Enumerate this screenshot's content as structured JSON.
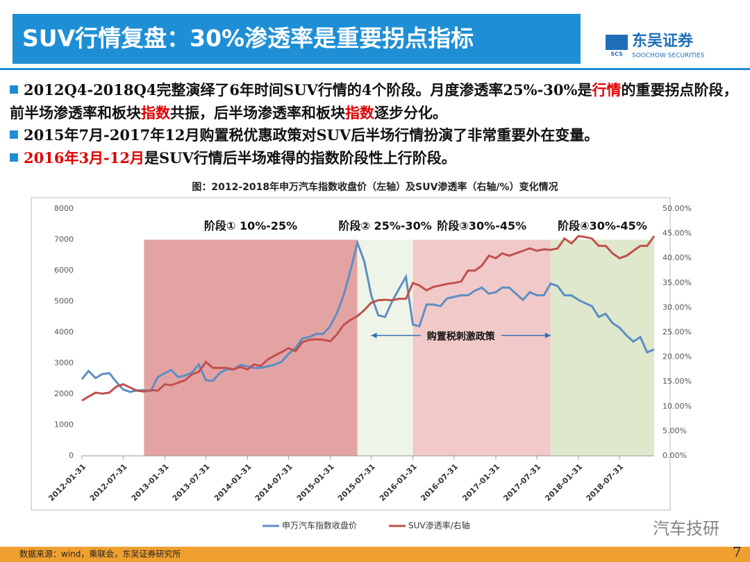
{
  "header": {
    "title": "SUV行情复盘：30%渗透率是重要拐点指标",
    "logo_mark": "SCS",
    "logo_name": "东吴证券",
    "logo_en": "SOOCHOW SECURITIES"
  },
  "bullets": [
    {
      "segments": [
        {
          "text": "2012Q4-2018Q4完整演绎了6年时间SUV行情的4个阶段。月度渗透率25%-30%是"
        },
        {
          "text": "行情",
          "red": true
        },
        {
          "text": "的重要拐点阶段，前半场渗透率和板块"
        },
        {
          "text": "指数",
          "red": true
        },
        {
          "text": "共振，后半场渗透率和板块"
        },
        {
          "text": "指数",
          "red": true
        },
        {
          "text": "逐步分化。"
        }
      ]
    },
    {
      "segments": [
        {
          "text": "2015年7月-2017年12月购置税优惠政策对SUV后半场行情扮演了非常重要外在变量。"
        }
      ]
    },
    {
      "segments": [
        {
          "text": "2016年3月-12月",
          "red": true
        },
        {
          "text": "是SUV行情后半场难得的指数阶段性上行阶段。"
        }
      ]
    }
  ],
  "chart_data": {
    "type": "line",
    "title": "图：2012-2018年申万汽车指数收盘价（左轴）及SUV渗透率（右轴/%）变化情况",
    "x": [
      "2012-01-31",
      "2012-02-29",
      "2012-03-31",
      "2012-04-30",
      "2012-05-31",
      "2012-06-30",
      "2012-07-31",
      "2012-08-31",
      "2012-09-30",
      "2012-10-31",
      "2012-11-30",
      "2012-12-31",
      "2013-01-31",
      "2013-02-28",
      "2013-03-31",
      "2013-04-30",
      "2013-05-31",
      "2013-06-30",
      "2013-07-31",
      "2013-08-31",
      "2013-09-30",
      "2013-10-31",
      "2013-11-30",
      "2013-12-31",
      "2014-01-31",
      "2014-02-28",
      "2014-03-31",
      "2014-04-30",
      "2014-05-31",
      "2014-06-30",
      "2014-07-31",
      "2014-08-31",
      "2014-09-30",
      "2014-10-31",
      "2014-11-30",
      "2014-12-31",
      "2015-01-31",
      "2015-02-28",
      "2015-03-31",
      "2015-04-30",
      "2015-05-31",
      "2015-06-30",
      "2015-07-31",
      "2015-08-31",
      "2015-09-30",
      "2015-10-31",
      "2015-11-30",
      "2015-12-31",
      "2016-01-31",
      "2016-02-29",
      "2016-03-31",
      "2016-04-30",
      "2016-05-31",
      "2016-06-30",
      "2016-07-31",
      "2016-08-31",
      "2016-09-30",
      "2016-10-31",
      "2016-11-30",
      "2016-12-31",
      "2017-01-31",
      "2017-02-28",
      "2017-03-31",
      "2017-04-30",
      "2017-05-31",
      "2017-06-30",
      "2017-07-31",
      "2017-08-31",
      "2017-09-30",
      "2017-10-31",
      "2017-11-30",
      "2017-12-31",
      "2018-01-31",
      "2018-02-28",
      "2018-03-31",
      "2018-04-30",
      "2018-05-31",
      "2018-06-30",
      "2018-07-31",
      "2018-08-31",
      "2018-09-30",
      "2018-10-31",
      "2018-11-30",
      "2018-12-31"
    ],
    "series": [
      {
        "name": "申万汽车指数收盘价",
        "color": "#5b8ec4",
        "axis": "y",
        "values": [
          2480,
          2750,
          2520,
          2650,
          2680,
          2400,
          2150,
          2070,
          2120,
          2130,
          2100,
          2550,
          2680,
          2780,
          2550,
          2600,
          2700,
          2960,
          2450,
          2430,
          2680,
          2800,
          2800,
          2950,
          2900,
          2850,
          2850,
          2900,
          2950,
          3050,
          3300,
          3500,
          3800,
          3850,
          3950,
          3950,
          4200,
          4600,
          5200,
          6000,
          6900,
          6300,
          5200,
          4550,
          4500,
          5000,
          5400,
          5800,
          4250,
          4200,
          4900,
          4900,
          4850,
          5100,
          5150,
          5200,
          5200,
          5350,
          5450,
          5250,
          5300,
          5450,
          5450,
          5250,
          5050,
          5300,
          5200,
          5200,
          5580,
          5500,
          5200,
          5200,
          5050,
          4950,
          4850,
          4500,
          4600,
          4300,
          4150,
          3900,
          3700,
          3850,
          3350,
          3450
        ]
      },
      {
        "name": "SUV渗透率/右轴",
        "color": "#c0504d",
        "axis": "y2",
        "values": [
          11.2,
          12.0,
          12.8,
          12.6,
          12.8,
          14.0,
          14.5,
          13.8,
          13.2,
          13.0,
          13.3,
          13.2,
          14.5,
          14.3,
          14.8,
          15.3,
          16.5,
          17.0,
          19.0,
          17.8,
          17.8,
          17.8,
          17.5,
          18.0,
          17.5,
          18.5,
          18.2,
          19.5,
          20.3,
          21.0,
          21.8,
          21.2,
          23.0,
          23.5,
          23.6,
          23.5,
          23.2,
          24.5,
          26.5,
          27.5,
          28.3,
          29.5,
          31.0,
          31.5,
          31.6,
          31.5,
          31.8,
          31.8,
          35.0,
          34.5,
          33.5,
          34.2,
          34.5,
          34.8,
          35.0,
          35.3,
          37.5,
          37.5,
          38.5,
          40.5,
          40.0,
          41.0,
          40.5,
          41.0,
          41.5,
          42.0,
          41.5,
          41.8,
          41.7,
          42.0,
          44.0,
          43.0,
          44.5,
          44.3,
          44.0,
          42.5,
          42.5,
          41.0,
          40.0,
          40.5,
          41.5,
          42.5,
          42.5,
          44.5
        ]
      }
    ],
    "xlim": [
      "2012-01-31",
      "2018-12-31"
    ],
    "xticks": [
      "2012-01-31",
      "2012-07-31",
      "2013-01-31",
      "2013-07-31",
      "2014-01-31",
      "2014-07-31",
      "2015-01-31",
      "2015-07-31",
      "2016-01-31",
      "2016-07-31",
      "2017-01-31",
      "2017-07-31",
      "2018-01-31",
      "2018-07-31"
    ],
    "ylim": [
      0,
      8000
    ],
    "yticks": [
      0,
      1000,
      2000,
      3000,
      4000,
      5000,
      6000,
      7000,
      8000
    ],
    "y2lim": [
      0,
      50
    ],
    "y2ticks": [
      {
        "value": 0,
        "label": "0.00%"
      },
      {
        "value": 5,
        "label": "5.00%"
      },
      {
        "value": 10,
        "label": "10.00%"
      },
      {
        "value": 15,
        "label": "15.00%"
      },
      {
        "value": 20,
        "label": "20.00%"
      },
      {
        "value": 25,
        "label": "25.00%"
      },
      {
        "value": 30,
        "label": "30.00%"
      },
      {
        "value": 35,
        "label": "35.00%"
      },
      {
        "value": 40,
        "label": "40.00%"
      },
      {
        "value": 45,
        "label": "45.00%"
      },
      {
        "value": 50,
        "label": "50.00%"
      }
    ],
    "regions": [
      {
        "label": "阶段① 10%-25%",
        "start": "2012-10-31",
        "end": "2015-05-31",
        "top": 7000,
        "color": "#e4a3a3"
      },
      {
        "label": "阶段② 25%-30%",
        "start": "2015-05-31",
        "end": "2016-01-31",
        "top": 7000,
        "color": "#eff4e8"
      },
      {
        "label": "阶段③30%-45%",
        "start": "2016-01-31",
        "end": "2017-09-30",
        "top": 7000,
        "color": "#f2c9c9"
      },
      {
        "label": "阶段④30%-45%",
        "start": "2017-09-30",
        "end": "2018-12-31",
        "top": 7000,
        "color": "#dfe8cd"
      }
    ],
    "annotations": [
      {
        "text": "购置税刺激政策",
        "start": "2015-07-31",
        "end": "2017-09-30",
        "y": 3900
      }
    ],
    "legend": "bottom"
  },
  "footer": {
    "source": "数据来源：wind，乘联会，东吴证券研究所",
    "page": "7",
    "watermark": "汽车技研"
  }
}
